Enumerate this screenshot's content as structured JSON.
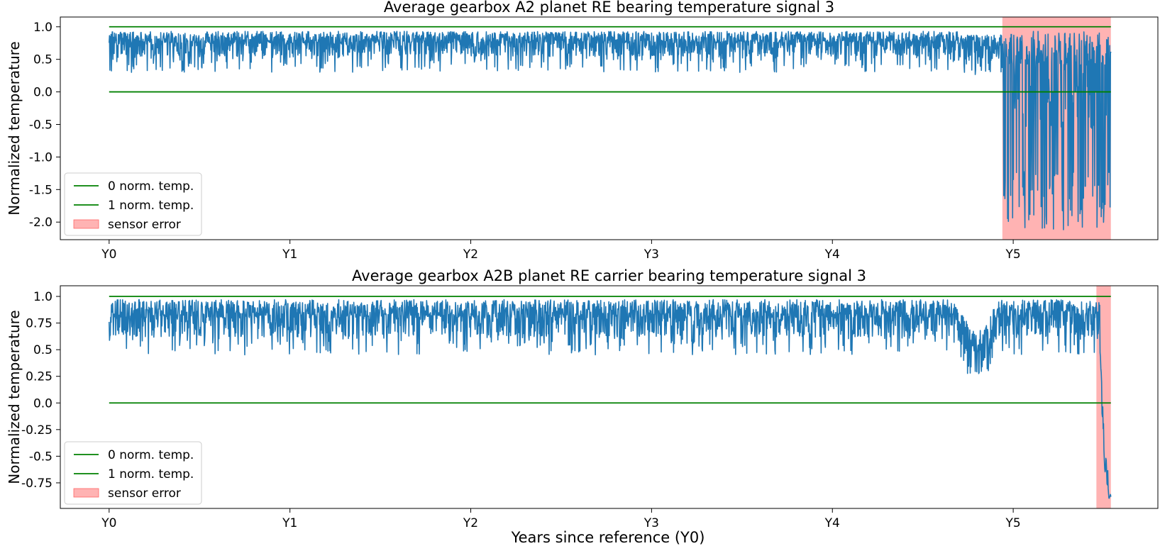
{
  "figure": {
    "xlabel": "Years since reference (Y0)"
  },
  "chart_data": [
    {
      "type": "line",
      "title": "Average gearbox A2 planet RE bearing temperature signal 3",
      "xlabel": "",
      "ylabel": "Normalized temperature",
      "x_ticks": [
        "Y0",
        "Y1",
        "Y2",
        "Y3",
        "Y4",
        "Y5"
      ],
      "xlim": [
        -0.27,
        5.8
      ],
      "ylim": [
        -2.27,
        1.15
      ],
      "y_ticks": [
        1.0,
        0.5,
        0.0,
        -0.5,
        -1.0,
        -1.5,
        -2.0
      ],
      "y_tick_labels": [
        "1.0",
        "0.5",
        "0.0",
        "-0.5",
        "-1.0",
        "-1.5",
        "-2.0"
      ],
      "grid": false,
      "legend_placement": "lower-left",
      "legend": [
        "0 norm. temp.",
        "1 norm. temp.",
        "sensor error"
      ],
      "reference_lines": [
        {
          "name": "0 norm. temp.",
          "y": 0.0,
          "x_range": [
            0,
            5.54
          ],
          "color": "#008000"
        },
        {
          "name": "1 norm. temp.",
          "y": 1.0,
          "x_range": [
            0,
            5.54
          ],
          "color": "#008000"
        }
      ],
      "sensor_error_region": {
        "name": "sensor error",
        "x_range": [
          4.94,
          5.54
        ],
        "color": "#ff9999"
      },
      "series": [
        {
          "color": "#1f77b4",
          "x_range": [
            0,
            5.54
          ],
          "normal_band": [
            0.3,
            0.93
          ],
          "normal_mean": 0.75,
          "error_min": -2.12,
          "error_max": 0.93,
          "error_start": 4.94
        }
      ]
    },
    {
      "type": "line",
      "title": "Average gearbox A2B planet RE carrier bearing temperature signal 3",
      "xlabel": "Years since reference (Y0)",
      "ylabel": "Normalized temperature",
      "x_ticks": [
        "Y0",
        "Y1",
        "Y2",
        "Y3",
        "Y4",
        "Y5"
      ],
      "xlim": [
        -0.27,
        5.8
      ],
      "ylim": [
        -0.99,
        1.1
      ],
      "y_ticks": [
        1.0,
        0.75,
        0.5,
        0.25,
        0.0,
        -0.25,
        -0.5,
        -0.75
      ],
      "y_tick_labels": [
        "1.0",
        "0.75",
        "0.5",
        "0.25",
        "0.0",
        "-0.25",
        "-0.5",
        "-0.75"
      ],
      "grid": false,
      "legend_placement": "lower-left",
      "legend": [
        "0 norm. temp.",
        "1 norm. temp.",
        "sensor error"
      ],
      "reference_lines": [
        {
          "name": "0 norm. temp.",
          "y": 0.0,
          "x_range": [
            0,
            5.54
          ],
          "color": "#008000"
        },
        {
          "name": "1 norm. temp.",
          "y": 1.0,
          "x_range": [
            0,
            5.54
          ],
          "color": "#008000"
        }
      ],
      "sensor_error_region": {
        "name": "sensor error",
        "x_range": [
          5.46,
          5.54
        ],
        "color": "#ff9999"
      },
      "series": [
        {
          "color": "#1f77b4",
          "x_range": [
            0,
            5.54
          ],
          "normal_band": [
            0.45,
            0.97
          ],
          "normal_mean": 0.85,
          "dip_center": 4.8,
          "dip_min": 0.27,
          "error_start": 5.46,
          "error_min": -0.9
        }
      ]
    }
  ]
}
